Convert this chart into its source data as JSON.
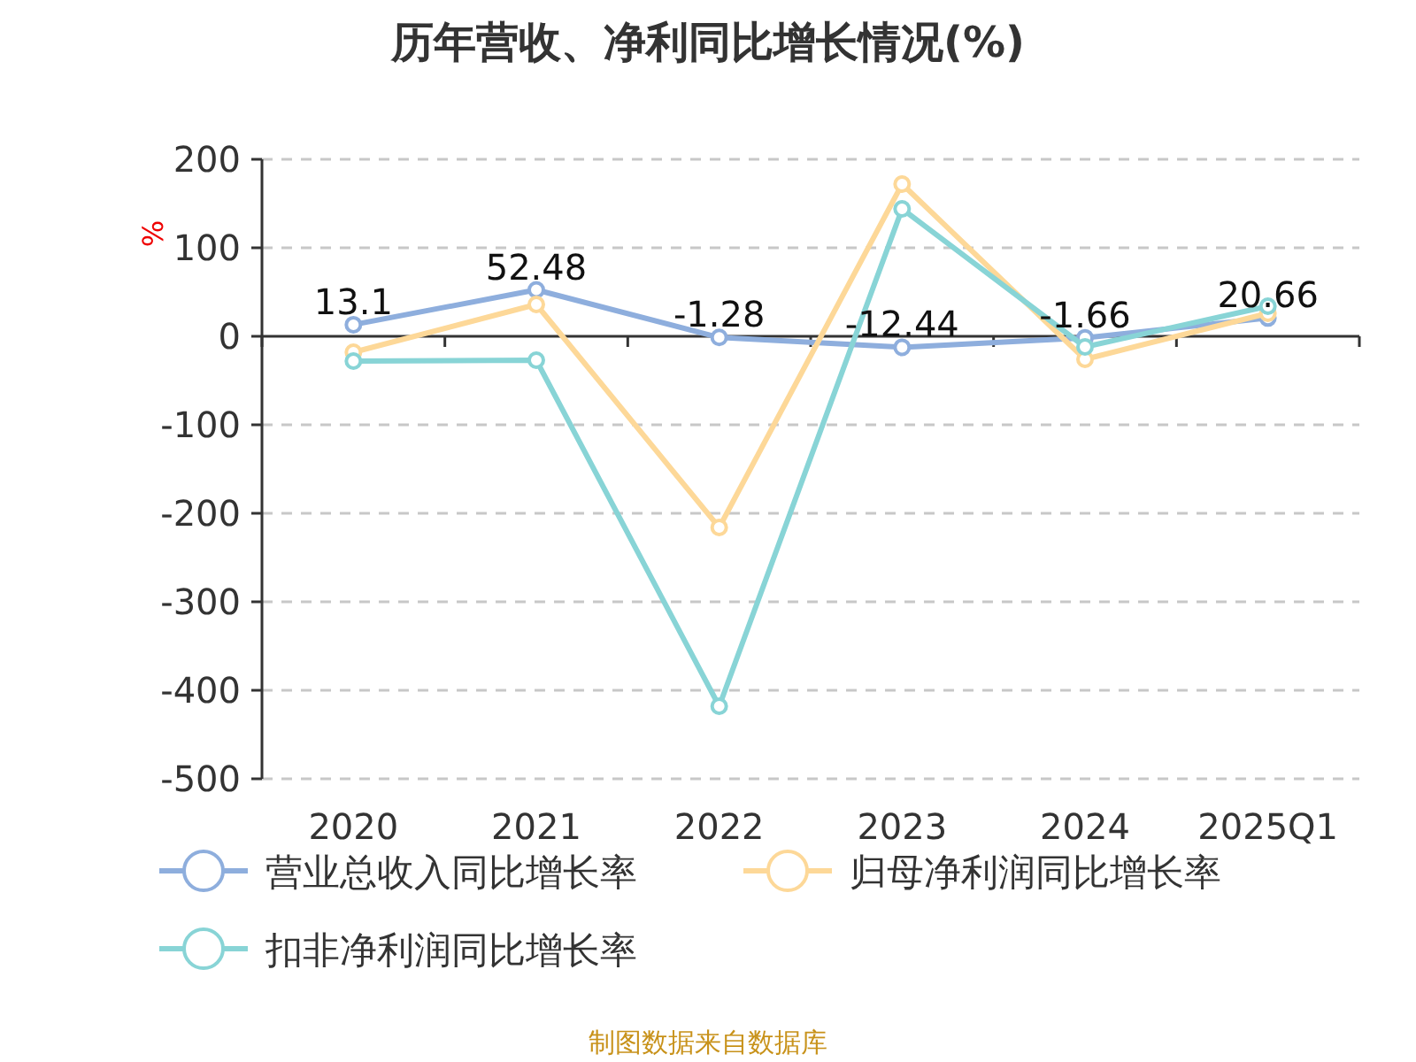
{
  "chart_data": {
    "type": "line",
    "title": "历年营收、净利同比增长情况(%)",
    "ylabel": "%",
    "categories": [
      "2020",
      "2021",
      "2022",
      "2023",
      "2024",
      "2025Q1"
    ],
    "series": [
      {
        "name": "营业总收入同比增长率",
        "color": "#8eaedd",
        "values": [
          13.1,
          52.48,
          -1.28,
          -12.44,
          -1.66,
          20.66
        ],
        "value_labels": [
          "13.1",
          "52.48",
          "-1.28",
          "-12.44",
          "-1.66",
          "20.66"
        ]
      },
      {
        "name": "归母净利润同比增长率",
        "color": "#fdd898",
        "values": [
          -18,
          36,
          -216,
          172,
          -26,
          26
        ]
      },
      {
        "name": "扣非净利润同比增长率",
        "color": "#88d4d6",
        "values": [
          -28,
          -27,
          -418,
          144,
          -12,
          34
        ]
      }
    ],
    "ylim": [
      -500,
      200
    ],
    "yticks": [
      -500,
      -400,
      -300,
      -200,
      -100,
      0,
      100,
      200
    ],
    "grid": "y",
    "legend": "bottom",
    "marker": "circle",
    "line_style": "solid",
    "annotations": [
      "制图数据来自数据库"
    ]
  }
}
